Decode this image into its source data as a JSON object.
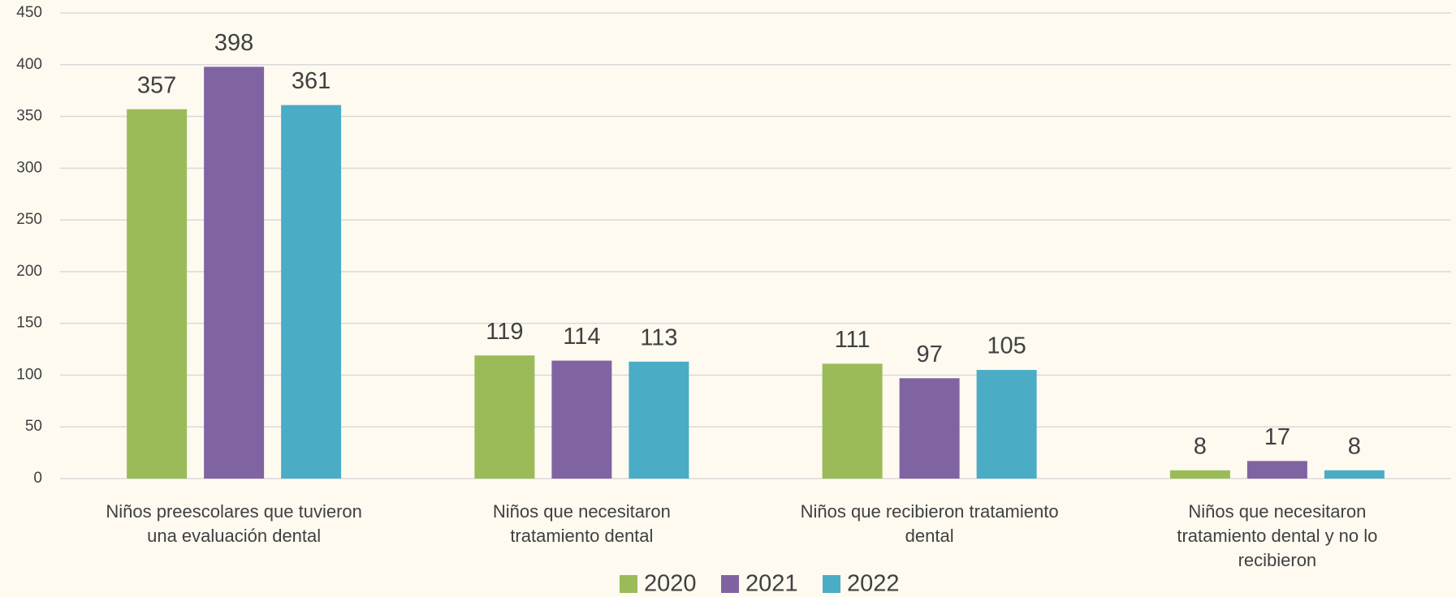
{
  "chart_data": {
    "type": "bar",
    "categories": [
      "Niños preescolares que tuvieron una evaluación dental",
      "Niños que necesitaron tratamiento dental",
      "Niños que recibieron tratamiento dental",
      "Niños que necesitaron tratamiento dental y no lo recibieron"
    ],
    "series": [
      {
        "name": "2020",
        "color": "#9bbb59",
        "values": [
          357,
          119,
          111,
          8
        ]
      },
      {
        "name": "2021",
        "color": "#8064a2",
        "values": [
          398,
          114,
          97,
          17
        ]
      },
      {
        "name": "2022",
        "color": "#4bacc6",
        "values": [
          361,
          113,
          105,
          8
        ]
      }
    ],
    "ylim": [
      0,
      450
    ],
    "yticks": [
      0,
      50,
      100,
      150,
      200,
      250,
      300,
      350,
      400,
      450
    ],
    "grid": true,
    "legend": "bottom"
  }
}
